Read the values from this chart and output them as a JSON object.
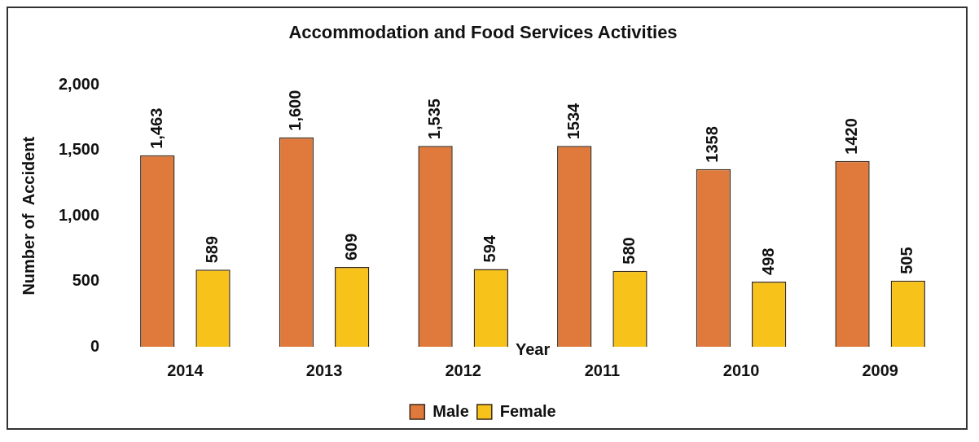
{
  "chart_data": {
    "type": "bar",
    "title": "Accommodation and Food Services Activities",
    "xlabel": "Year",
    "ylabel": "Number of  Accident",
    "categories": [
      "2014",
      "2013",
      "2012",
      "2011",
      "2010",
      "2009"
    ],
    "series": [
      {
        "name": "Male",
        "color": "#e07a3c",
        "values": [
          1463,
          1600,
          1535,
          1534,
          1358,
          1420
        ],
        "value_labels": [
          "1,463",
          "1,600",
          "1,535",
          "1534",
          "1358",
          "1420"
        ]
      },
      {
        "name": "Female",
        "color": "#f7c21a",
        "values": [
          589,
          609,
          594,
          580,
          498,
          505
        ],
        "value_labels": [
          "589",
          "609",
          "594",
          "580",
          "498",
          "505"
        ]
      }
    ],
    "ylim": [
      0,
      2000
    ],
    "yticks": [
      {
        "value": 0,
        "label": "0"
      },
      {
        "value": 500,
        "label": "500"
      },
      {
        "value": 1000,
        "label": "1,000"
      },
      {
        "value": 1500,
        "label": "1,500"
      },
      {
        "value": 2000,
        "label": "2,000"
      }
    ],
    "grid": false,
    "legend": "bottom"
  }
}
